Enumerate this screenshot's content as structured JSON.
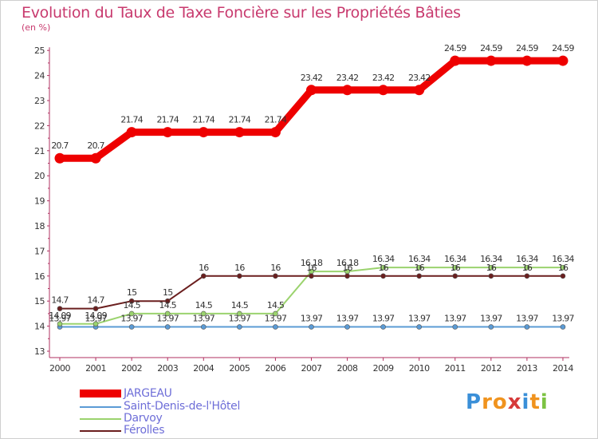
{
  "title": "Evolution du Taux de Taxe Foncière sur les Propriétés Bâties",
  "subtitle": "(en %)",
  "logo": {
    "text": "Proxiti",
    "colors": [
      "#3a8fd8",
      "#f0931e",
      "#f0931e",
      "#d63a3a",
      "#3a8fd8",
      "#f0931e",
      "#7cc242"
    ]
  },
  "chart_data": {
    "type": "line",
    "title": "Evolution du Taux de Taxe Foncière sur les Propriétés Bâties",
    "ylabel": "(en %)",
    "xlabel": "",
    "ylim": [
      13,
      25
    ],
    "yticks": [
      "13",
      "14",
      "15",
      "16",
      "17",
      "18",
      "19",
      "20",
      "21",
      "22",
      "23",
      "24",
      "25"
    ],
    "categories": [
      "2000",
      "2001",
      "2002",
      "2003",
      "2004",
      "2005",
      "2006",
      "2007",
      "2008",
      "2009",
      "2010",
      "2011",
      "2012",
      "2013",
      "2014"
    ],
    "series": [
      {
        "name": "JARGEAU",
        "color": "#ee0000",
        "values": [
          20.7,
          20.7,
          21.74,
          21.74,
          21.74,
          21.74,
          21.74,
          23.42,
          23.42,
          23.42,
          23.42,
          24.59,
          24.59,
          24.59,
          24.59
        ],
        "labels": [
          "20.7",
          "20.7",
          "21.74",
          "21.74",
          "21.74",
          "21.74",
          "21.74",
          "23.42",
          "23.42",
          "23.42",
          "23.42",
          "24.59",
          "24.59",
          "24.59",
          "24.59"
        ]
      },
      {
        "name": "Saint-Denis-de-l'Hôtel",
        "color": "#5b9bd5",
        "values": [
          13.97,
          13.97,
          13.97,
          13.97,
          13.97,
          13.97,
          13.97,
          13.97,
          13.97,
          13.97,
          13.97,
          13.97,
          13.97,
          13.97,
          13.97
        ],
        "labels": [
          "13.97",
          "13.97",
          "13.97",
          "13.97",
          "13.97",
          "13.97",
          "13.97",
          "13.97",
          "13.97",
          "13.97",
          "13.97",
          "13.97",
          "13.97",
          "13.97",
          "13.97"
        ]
      },
      {
        "name": "Darvoy",
        "color": "#9bd36e",
        "values": [
          14.09,
          14.09,
          14.5,
          14.5,
          14.5,
          14.5,
          14.5,
          16.18,
          16.18,
          16.34,
          16.34,
          16.34,
          16.34,
          16.34,
          16.34
        ],
        "labels": [
          "14.09",
          "14.09",
          "14.5",
          "14.5",
          "14.5",
          "14.5",
          "14.5",
          "16.18",
          "16.18",
          "16.34",
          "16.34",
          "16.34",
          "16.34",
          "16.34",
          "16.34"
        ]
      },
      {
        "name": "Férolles",
        "color": "#6b1f1f",
        "values": [
          14.7,
          14.7,
          15,
          15,
          16,
          16,
          16,
          16,
          16,
          16,
          16,
          16,
          16,
          16,
          16
        ],
        "labels": [
          "14.7",
          "14.7",
          "15",
          "15",
          "16",
          "16",
          "16",
          "16",
          "16",
          "16",
          "16",
          "16",
          "16",
          "16",
          "16"
        ]
      }
    ],
    "legend_position": "bottom-left",
    "grid": false
  }
}
